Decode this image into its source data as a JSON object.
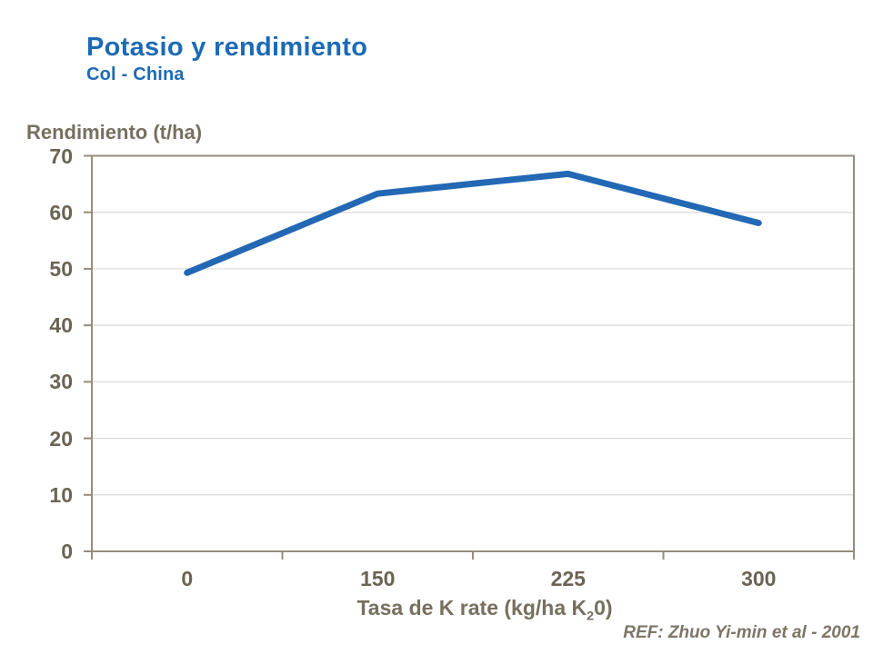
{
  "slide": {
    "title": "Potasio y rendimiento",
    "subtitle": "Col - China",
    "ref_note": "REF: Zhuo Yi-min et al - 2001"
  },
  "chart_data": {
    "type": "line",
    "title": "Potasio y rendimiento",
    "subtitle": "Col - China",
    "categories": [
      "0",
      "150",
      "225",
      "300"
    ],
    "series": [
      {
        "name": "Rendimiento",
        "values": [
          49.3,
          63.3,
          66.8,
          58.1
        ]
      }
    ],
    "xlabel": "Tasa de K rate (kg/ha K20)",
    "xlabel_parts": {
      "pre": "Tasa de K rate (kg/ha K",
      "sub": "2",
      "post": "0)"
    },
    "ylabel": "Rendimiento (t/ha)",
    "ylim": [
      0,
      70
    ],
    "yticks": [
      0,
      10,
      20,
      30,
      40,
      50,
      60,
      70
    ],
    "grid": "horizontal",
    "legend": "none",
    "annotation": "REF: Zhuo Yi-min et al - 2001"
  },
  "colors": {
    "title_blue": "#1e6ab4",
    "line_blue": "#2368b4",
    "tick_gray": "#6b6454",
    "axis_title_gray": "#776f5f",
    "ref_gray": "#7d7567",
    "axis_gray": "#968d7d",
    "grid_gray": "#d9d9d9"
  }
}
